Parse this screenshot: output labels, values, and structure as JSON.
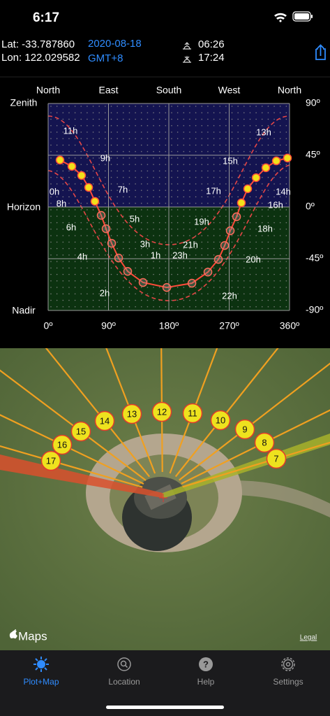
{
  "status_bar": {
    "time": "6:17"
  },
  "header": {
    "latitude": "Lat: -33.787860",
    "longitude": "Lon: 122.029582",
    "date": "2020-08-18",
    "timezone": "GMT+8",
    "sunrise": "06:26",
    "sunset": "17:24"
  },
  "sun_plot": {
    "direction_labels": [
      "North",
      "East",
      "South",
      "West",
      "North"
    ],
    "altitude_labels": [
      "Zenith",
      "Horizon",
      "Nadir"
    ],
    "xlim": [
      0,
      360
    ],
    "ylim": [
      -90,
      90
    ],
    "xticks": [
      {
        "value": 0,
        "label": "0º"
      },
      {
        "value": 90,
        "label": "90º"
      },
      {
        "value": 180,
        "label": "180º"
      },
      {
        "value": 270,
        "label": "270º"
      },
      {
        "value": 360,
        "label": "360º"
      }
    ],
    "yticks": [
      {
        "value": 90,
        "label": "90º"
      },
      {
        "value": 45,
        "label": "45º"
      },
      {
        "value": 0,
        "label": "0º"
      },
      {
        "value": -45,
        "label": "-45º"
      },
      {
        "value": -90,
        "label": "-90º"
      }
    ],
    "hour_labels": [
      "0h",
      "1h",
      "2h",
      "3h",
      "4h",
      "5h",
      "6h",
      "7h",
      "8h",
      "9h",
      "11h",
      "13h",
      "14h",
      "15h",
      "16h",
      "17h",
      "18h",
      "19h",
      "20h",
      "21h",
      "22h",
      "23h"
    ],
    "sun_positions": {
      "azimuth": [
        17.7,
        35.4,
        49.9,
        60.4,
        69.7,
        79.1,
        86.4,
        94.7,
        105.1,
        118.6,
        141.5,
        176.9,
        214.4,
        238.3,
        253.9,
        263.3,
        271.6,
        281.0,
        288.2,
        297.6,
        310.1,
        324.7,
        340.3,
        356.9
      ],
      "altitude": [
        40.8,
        35.3,
        27.4,
        17.0,
        4.9,
        -7.3,
        -18.9,
        -31.6,
        -44.4,
        -56.0,
        -65.7,
        -70.0,
        -66.3,
        -56.6,
        -45.6,
        -33.5,
        -20.7,
        -8.5,
        3.6,
        15.8,
        25.5,
        34.1,
        40.1,
        42.6
      ]
    }
  },
  "map": {
    "hour_markers": [
      17,
      16,
      15,
      14,
      13,
      12,
      11,
      10,
      9,
      8,
      7
    ],
    "brand": "Maps",
    "legal": "Legal"
  },
  "tab_bar": {
    "tabs": [
      "Plot+Map",
      "Location",
      "Help",
      "Settings"
    ]
  }
}
